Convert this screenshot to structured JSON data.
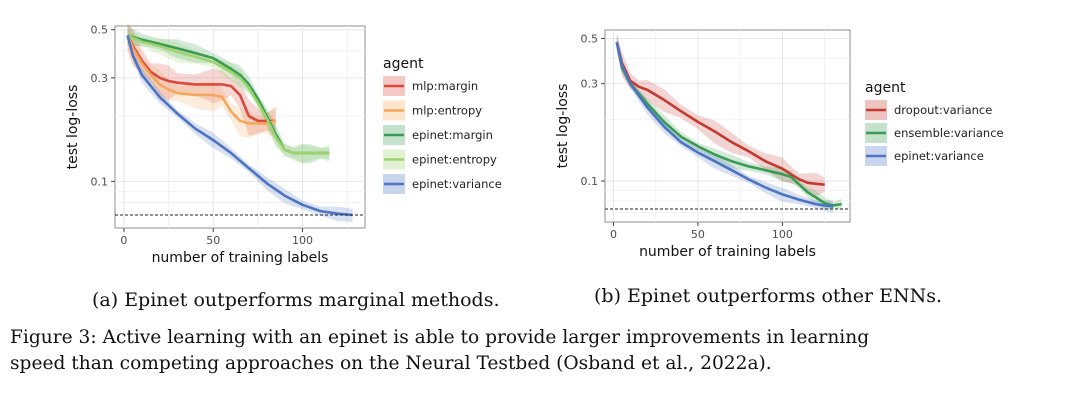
{
  "figure_caption": {
    "line1": "Figure 3: Active learning with an epinet is able to provide larger improvements in learning",
    "line2": "speed than competing approaches on the Neural Testbed (Osband et al., 2022a)."
  },
  "chart_data": [
    {
      "id": "a",
      "type": "line",
      "caption": "(a) Epinet outperforms marginal methods.",
      "xlabel": "number of training labels",
      "ylabel": "test log-loss",
      "xlim": [
        -5,
        135
      ],
      "ylim": [
        0.061,
        0.52
      ],
      "yscale": "log",
      "xticks": [
        0,
        50,
        100
      ],
      "yticks": [
        0.1,
        0.3,
        0.5
      ],
      "ytick_labels": [
        "0.1",
        "0.3",
        "0.5"
      ],
      "grid": true,
      "legend_title": "agent",
      "legend_position": "right",
      "reference_line": {
        "y": 0.07,
        "style": "dashed"
      },
      "series": [
        {
          "name": "mlp:margin",
          "color": "#d94a3d",
          "x": [
            2,
            5,
            10,
            15,
            20,
            25,
            30,
            40,
            50,
            55,
            60,
            65,
            70,
            75,
            80,
            85
          ],
          "y": [
            0.47,
            0.42,
            0.36,
            0.32,
            0.3,
            0.29,
            0.285,
            0.28,
            0.28,
            0.28,
            0.275,
            0.25,
            0.2,
            0.19,
            0.19,
            0.19
          ],
          "band": 0.14
        },
        {
          "name": "mlp:entropy",
          "color": "#f4a75a",
          "x": [
            2,
            5,
            10,
            15,
            20,
            25,
            30,
            40,
            50,
            55,
            60,
            65,
            70,
            75,
            80,
            85
          ],
          "y": [
            0.47,
            0.41,
            0.35,
            0.31,
            0.28,
            0.265,
            0.255,
            0.25,
            0.25,
            0.245,
            0.21,
            0.19,
            0.185,
            0.185,
            0.185,
            0.19
          ],
          "band": 0.12
        },
        {
          "name": "epinet:margin",
          "color": "#3a9c54",
          "x": [
            2,
            10,
            20,
            30,
            40,
            50,
            60,
            65,
            70,
            75,
            80,
            85,
            90,
            95,
            100,
            105,
            110,
            115
          ],
          "y": [
            0.47,
            0.45,
            0.43,
            0.41,
            0.39,
            0.37,
            0.33,
            0.31,
            0.28,
            0.24,
            0.2,
            0.165,
            0.14,
            0.135,
            0.135,
            0.135,
            0.135,
            0.135
          ],
          "band": 0.08
        },
        {
          "name": "epinet:entropy",
          "color": "#9dd26d",
          "x": [
            2,
            10,
            20,
            30,
            40,
            50,
            60,
            65,
            70,
            75,
            80,
            85,
            90,
            95,
            100,
            105,
            110,
            115
          ],
          "y": [
            0.47,
            0.44,
            0.42,
            0.395,
            0.375,
            0.355,
            0.32,
            0.3,
            0.27,
            0.23,
            0.195,
            0.16,
            0.14,
            0.135,
            0.135,
            0.135,
            0.135,
            0.135
          ],
          "band": 0.08
        },
        {
          "name": "epinet:variance",
          "color": "#4c74c4",
          "x": [
            2,
            5,
            10,
            20,
            30,
            40,
            50,
            60,
            70,
            80,
            90,
            100,
            110,
            120,
            128
          ],
          "y": [
            0.47,
            0.38,
            0.31,
            0.245,
            0.205,
            0.175,
            0.155,
            0.135,
            0.115,
            0.098,
            0.086,
            0.078,
            0.073,
            0.071,
            0.07
          ],
          "band": 0.06
        }
      ]
    },
    {
      "id": "b",
      "type": "line",
      "caption": "(b) Epinet outperforms other ENNs.",
      "xlabel": "number of training labels",
      "ylabel": "test log-loss",
      "xlim": [
        -5,
        140
      ],
      "ylim": [
        0.063,
        0.55
      ],
      "yscale": "log",
      "xticks": [
        0,
        50,
        100
      ],
      "yticks": [
        0.1,
        0.3,
        0.5
      ],
      "ytick_labels": [
        "0.1",
        "0.3",
        "0.5"
      ],
      "grid": true,
      "legend_title": "agent",
      "legend_position": "right",
      "reference_line": {
        "y": 0.073,
        "style": "dashed"
      },
      "series": [
        {
          "name": "dropout:variance",
          "color": "#c43a30",
          "x": [
            2,
            5,
            10,
            15,
            20,
            30,
            40,
            50,
            60,
            70,
            80,
            90,
            100,
            105,
            110,
            115,
            120,
            125
          ],
          "y": [
            0.48,
            0.38,
            0.31,
            0.29,
            0.28,
            0.25,
            0.22,
            0.195,
            0.175,
            0.155,
            0.14,
            0.125,
            0.115,
            0.108,
            0.102,
            0.098,
            0.097,
            0.096
          ],
          "band": 0.1
        },
        {
          "name": "ensemble:variance",
          "color": "#3a9c54",
          "x": [
            2,
            5,
            10,
            20,
            30,
            40,
            50,
            60,
            70,
            80,
            90,
            100,
            105,
            110,
            115,
            120,
            125,
            130,
            135
          ],
          "y": [
            0.48,
            0.36,
            0.3,
            0.24,
            0.195,
            0.165,
            0.148,
            0.135,
            0.125,
            0.118,
            0.113,
            0.108,
            0.105,
            0.096,
            0.088,
            0.083,
            0.078,
            0.076,
            0.077
          ],
          "band": 0.06
        },
        {
          "name": "epinet:variance",
          "color": "#4c74c4",
          "x": [
            2,
            5,
            10,
            20,
            30,
            40,
            50,
            60,
            70,
            80,
            90,
            100,
            110,
            120,
            130
          ],
          "y": [
            0.48,
            0.37,
            0.3,
            0.23,
            0.185,
            0.155,
            0.138,
            0.125,
            0.113,
            0.102,
            0.093,
            0.086,
            0.081,
            0.077,
            0.075
          ],
          "band": 0.06
        }
      ]
    }
  ]
}
